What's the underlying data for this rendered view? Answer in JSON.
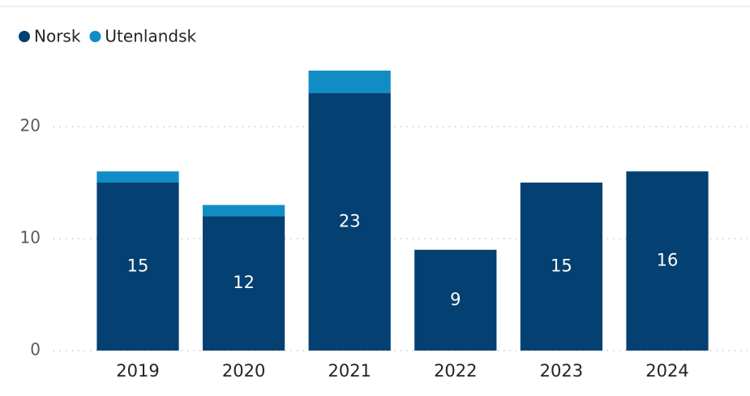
{
  "chart_data": {
    "type": "stacked_bar",
    "categories": [
      "2019",
      "2020",
      "2021",
      "2022",
      "2023",
      "2024"
    ],
    "series": [
      {
        "name": "Norsk",
        "color": "#054072",
        "values": [
          15,
          12,
          23,
          9,
          15,
          16
        ],
        "labels": true
      },
      {
        "name": "Utenlandsk",
        "color": "#118dc6",
        "values": [
          1,
          1,
          2,
          0,
          0,
          0
        ],
        "labels": false
      }
    ],
    "ylim": [
      0,
      26
    ],
    "yticks": [
      0,
      10,
      20
    ],
    "grid": true,
    "legend": "top-left"
  }
}
